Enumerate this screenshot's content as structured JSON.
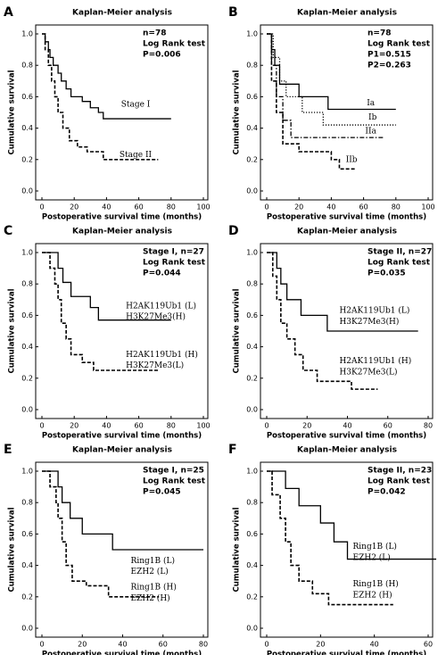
{
  "chart_data": [
    {
      "type": "line",
      "step": true,
      "panel": "A",
      "title": "Kaplan-Meier analysis",
      "annotations": [
        "n=78",
        "Log Rank test",
        "P=0.006"
      ],
      "xlabel": "Postoperative survival time (months)",
      "ylabel": "Cumulative survival",
      "xlim": [
        0,
        100
      ],
      "xticks": [
        0,
        20,
        40,
        60,
        80,
        100
      ],
      "ylim": [
        0,
        1
      ],
      "yticks": [
        {
          "value": 0,
          "label": "0.0"
        },
        0.2,
        0.4,
        0.6,
        0.8,
        {
          "value": 1,
          "label": "1.0"
        }
      ],
      "series": [
        {
          "name": "Stage I",
          "color": "#000000",
          "dash": "solid",
          "x": [
            0,
            2,
            4,
            5,
            7,
            10,
            12,
            15,
            18,
            25,
            30,
            35,
            38,
            80
          ],
          "values": [
            1,
            0.95,
            0.9,
            0.85,
            0.8,
            0.75,
            0.7,
            0.65,
            0.6,
            0.57,
            0.53,
            0.5,
            0.46,
            0.46
          ]
        },
        {
          "name": "Stage II",
          "color": "#000000",
          "dash": "dashed",
          "x": [
            0,
            2,
            4,
            6,
            8,
            10,
            13,
            17,
            22,
            28,
            38,
            72
          ],
          "values": [
            1,
            0.9,
            0.8,
            0.7,
            0.6,
            0.5,
            0.4,
            0.32,
            0.28,
            0.25,
            0.2,
            0.2
          ]
        }
      ]
    },
    {
      "type": "line",
      "step": true,
      "panel": "B",
      "title": "Kaplan-Meier analysis",
      "annotations": [
        "n=78",
        "Log Rank test",
        "P1=0.515",
        "P2=0.263"
      ],
      "xlabel": "Postoperative survival time (months)",
      "ylabel": "Cumulative survival",
      "xlim": [
        0,
        100
      ],
      "xticks": [
        0,
        20,
        40,
        60,
        80,
        100
      ],
      "ylim": [
        0,
        1
      ],
      "yticks": [
        {
          "value": 0,
          "label": "0.0"
        },
        0.2,
        0.4,
        0.6,
        0.8,
        {
          "value": 1,
          "label": "1.0"
        }
      ],
      "series": [
        {
          "name": "Ia",
          "color": "#000000",
          "dash": "solid",
          "x": [
            0,
            3,
            5,
            8,
            20,
            38,
            80
          ],
          "values": [
            1,
            0.9,
            0.8,
            0.68,
            0.6,
            0.52,
            0.52
          ]
        },
        {
          "name": "Ib",
          "color": "#000000",
          "dash": "dotted",
          "x": [
            0,
            4,
            8,
            12,
            22,
            35,
            80
          ],
          "values": [
            1,
            0.85,
            0.7,
            0.6,
            0.5,
            0.42,
            0.42
          ]
        },
        {
          "name": "IIa",
          "color": "#000000",
          "dash": "dashdot",
          "x": [
            0,
            3,
            6,
            10,
            15,
            72
          ],
          "values": [
            1,
            0.8,
            0.6,
            0.45,
            0.34,
            0.34
          ]
        },
        {
          "name": "IIb",
          "color": "#000000",
          "dash": "dashed",
          "x": [
            0,
            3,
            6,
            10,
            20,
            40,
            45,
            55
          ],
          "values": [
            1,
            0.7,
            0.5,
            0.3,
            0.25,
            0.2,
            0.14,
            0.14
          ]
        }
      ]
    },
    {
      "type": "line",
      "step": true,
      "panel": "C",
      "title": "Kaplan-Meier analysis",
      "annotations": [
        "Stage I, n=27",
        "Log Rank test",
        "P=0.044"
      ],
      "xlabel": "Postoperative survival time (months)",
      "ylabel": "Cumulative survival",
      "xlim": [
        0,
        100
      ],
      "xticks": [
        0,
        20,
        40,
        60,
        80,
        100
      ],
      "ylim": [
        0,
        1
      ],
      "yticks": [
        {
          "value": 0,
          "label": "0.0"
        },
        0.2,
        0.4,
        0.6,
        0.8,
        {
          "value": 1,
          "label": "1.0"
        }
      ],
      "series": [
        {
          "name": [
            "H2AK119Ub1 (L)",
            "H3K27Me3(H)"
          ],
          "color": "#000000",
          "dash": "solid",
          "x": [
            0,
            10,
            13,
            18,
            30,
            35,
            80
          ],
          "values": [
            1,
            0.9,
            0.81,
            0.72,
            0.65,
            0.57,
            0.57
          ]
        },
        {
          "name": [
            "H2AK119Ub1 (H)",
            "H3K27Me3(L)"
          ],
          "color": "#000000",
          "dash": "dashed",
          "x": [
            0,
            5,
            8,
            10,
            12,
            15,
            18,
            25,
            32,
            72
          ],
          "values": [
            1,
            0.9,
            0.8,
            0.7,
            0.55,
            0.45,
            0.35,
            0.3,
            0.25,
            0.25
          ]
        }
      ]
    },
    {
      "type": "line",
      "step": true,
      "panel": "D",
      "title": "Kaplan-Meier analysis",
      "annotations": [
        "Stage II, n=27",
        "Log Rank test",
        "P=0.035"
      ],
      "xlabel": "Postoperative survival time (months)",
      "ylabel": "Cumulative survival",
      "xlim": [
        0,
        80
      ],
      "xticks": [
        0,
        20,
        40,
        60,
        80
      ],
      "ylim": [
        0,
        1
      ],
      "yticks": [
        {
          "value": 0,
          "label": "0.0"
        },
        0.2,
        0.4,
        0.6,
        0.8,
        {
          "value": 1,
          "label": "1.0"
        }
      ],
      "series": [
        {
          "name": [
            "H2AK119Ub1 (L)",
            "H3K27Me3(H)"
          ],
          "color": "#000000",
          "dash": "solid",
          "x": [
            0,
            5,
            7,
            10,
            17,
            30,
            75
          ],
          "values": [
            1,
            0.9,
            0.8,
            0.7,
            0.6,
            0.5,
            0.5
          ]
        },
        {
          "name": [
            "H2AK119Ub1 (H)",
            "H3K27Me3(L)"
          ],
          "color": "#000000",
          "dash": "dashed",
          "x": [
            0,
            3,
            5,
            7,
            10,
            14,
            18,
            25,
            42,
            55
          ],
          "values": [
            1,
            0.85,
            0.7,
            0.55,
            0.45,
            0.35,
            0.25,
            0.18,
            0.13,
            0.13
          ]
        }
      ]
    },
    {
      "type": "line",
      "step": true,
      "panel": "E",
      "title": "Kaplan-Meier analysis",
      "annotations": [
        "Stage I, n=25",
        "Log Rank test",
        "P=0.045"
      ],
      "xlabel": "Postoperative survival time (months)",
      "ylabel": "Cumulative survival",
      "xlim": [
        0,
        80
      ],
      "xticks": [
        0,
        20,
        40,
        60,
        80
      ],
      "ylim": [
        0,
        1
      ],
      "yticks": [
        {
          "value": 0,
          "label": "0.0"
        },
        0.2,
        0.4,
        0.6,
        0.8,
        {
          "value": 1,
          "label": "1.0"
        }
      ],
      "series": [
        {
          "name": [
            "Ring1B (L)",
            "EZH2 (L)"
          ],
          "color": "#000000",
          "dash": "solid",
          "x": [
            0,
            8,
            10,
            14,
            20,
            35,
            80
          ],
          "values": [
            1,
            0.9,
            0.8,
            0.7,
            0.6,
            0.5,
            0.5
          ]
        },
        {
          "name": [
            "Ring1B (H)",
            "EZH2 (H)"
          ],
          "color": "#000000",
          "dash": "dashed",
          "x": [
            0,
            4,
            7,
            8,
            10,
            12,
            15,
            22,
            33,
            58
          ],
          "values": [
            1,
            0.9,
            0.8,
            0.7,
            0.55,
            0.4,
            0.3,
            0.27,
            0.2,
            0.2
          ]
        }
      ]
    },
    {
      "type": "line",
      "step": true,
      "panel": "F",
      "title": "Kaplan-Meier analysis",
      "annotations": [
        "Stage II, n=23",
        "Log Rank test",
        "P=0.042"
      ],
      "xlabel": "Postoperative survival time (months)",
      "ylabel": "Cumulative survival",
      "xlim": [
        0,
        60
      ],
      "xticks": [
        0,
        20,
        40,
        60
      ],
      "ylim": [
        0,
        1
      ],
      "yticks": [
        {
          "value": 0,
          "label": "0.0"
        },
        0.2,
        0.4,
        0.6,
        0.8,
        {
          "value": 1,
          "label": "1.0"
        }
      ],
      "series": [
        {
          "name": [
            "Ring1B (L)",
            "EZH2 (L)"
          ],
          "color": "#000000",
          "dash": "solid",
          "x": [
            0,
            7,
            12,
            20,
            25,
            30,
            63
          ],
          "values": [
            1,
            0.89,
            0.78,
            0.67,
            0.55,
            0.44,
            0.44
          ]
        },
        {
          "name": [
            "Ring1B (H)",
            "EZH2 (H)"
          ],
          "color": "#000000",
          "dash": "dashed",
          "x": [
            0,
            2,
            5,
            7,
            9,
            12,
            17,
            23,
            47
          ],
          "values": [
            1,
            0.85,
            0.7,
            0.55,
            0.4,
            0.3,
            0.22,
            0.15,
            0.15
          ]
        }
      ]
    }
  ]
}
